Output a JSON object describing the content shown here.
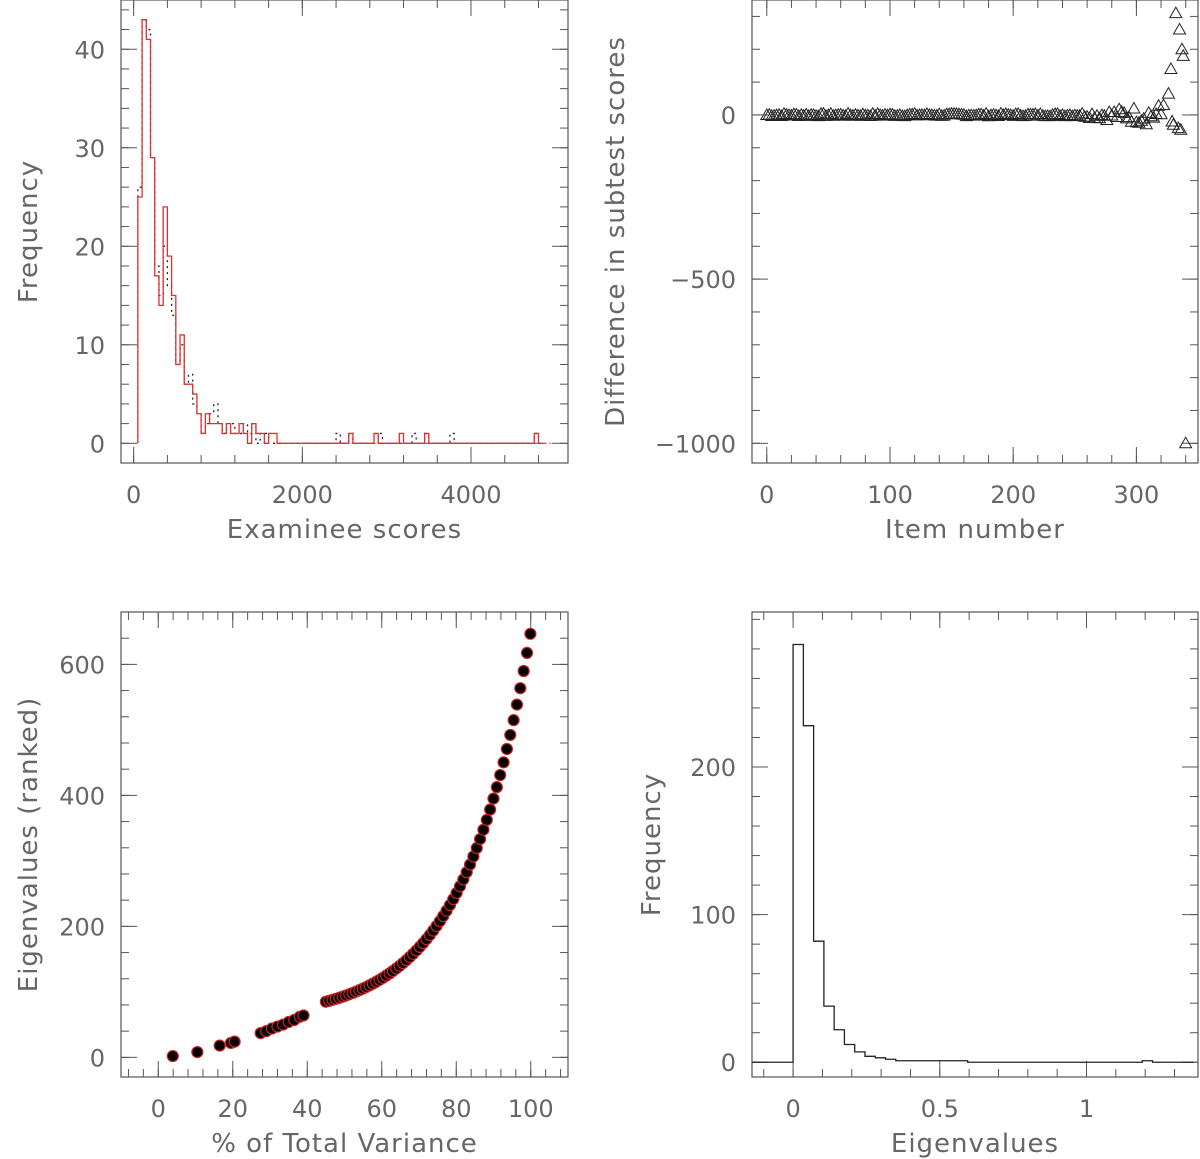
{
  "chart_data": [
    {
      "type": "histogram",
      "xlabel": "Examinee scores",
      "ylabel": "Frequency",
      "xlim": [
        -150,
        5150
      ],
      "ylim": [
        -2,
        45
      ],
      "xticks": [
        0,
        2000,
        4000
      ],
      "yticks": [
        0,
        10,
        20,
        30,
        40
      ],
      "series": [
        {
          "color": "#222222",
          "style": "dotted",
          "bin_width": 50,
          "x_start": 50,
          "values": [
            26,
            43,
            42,
            29,
            18,
            15,
            20,
            16,
            13,
            8,
            10,
            6,
            7,
            4,
            3,
            1,
            2,
            3,
            4,
            2,
            1,
            2,
            2,
            1,
            1,
            2,
            1,
            2,
            0,
            1,
            1,
            0,
            0,
            0,
            0,
            0,
            0,
            0,
            0,
            0,
            0,
            0,
            0,
            0,
            0,
            0,
            0,
            1,
            0,
            0,
            1,
            0,
            0,
            0,
            0,
            0,
            0,
            1,
            0,
            0,
            0,
            0,
            0,
            0,
            0,
            1,
            0,
            0,
            1,
            0,
            0,
            0,
            0,
            0,
            1,
            0,
            0,
            0,
            0,
            0,
            0,
            0,
            0,
            0,
            0,
            0,
            0,
            0,
            0,
            0,
            0,
            0,
            0,
            0,
            1,
            0
          ]
        },
        {
          "color": "#e03030",
          "style": "solid",
          "bin_width": 50,
          "x_start": 50,
          "values": [
            25,
            43,
            41,
            29,
            17,
            14,
            24,
            19,
            15,
            8,
            11,
            6,
            6,
            5,
            3,
            1,
            3,
            2,
            2,
            2,
            1,
            2,
            1,
            1,
            2,
            1,
            0,
            2,
            1,
            1,
            0,
            1,
            1,
            0,
            0,
            0,
            0,
            0,
            0,
            0,
            0,
            0,
            0,
            0,
            0,
            0,
            0,
            0,
            0,
            0,
            1,
            0,
            0,
            0,
            0,
            0,
            1,
            0,
            0,
            0,
            0,
            0,
            1,
            0,
            0,
            0,
            0,
            0,
            1,
            0,
            0,
            0,
            0,
            0,
            0,
            0,
            0,
            0,
            0,
            0,
            0,
            0,
            0,
            0,
            0,
            0,
            0,
            0,
            0,
            0,
            0,
            0,
            0,
            0,
            1,
            0
          ]
        }
      ]
    },
    {
      "type": "scatter",
      "xlabel": "Item number",
      "ylabel": "Difference in subtest scores",
      "xlim": [
        -12,
        350
      ],
      "ylim": [
        -1060,
        350
      ],
      "xticks": [
        0,
        100,
        200,
        300
      ],
      "yticks": [
        -1000,
        -500,
        0
      ],
      "marker": "triangle",
      "color": "#222222",
      "outliers": [
        {
          "x": 332,
          "y": 310
        },
        {
          "x": 335,
          "y": 260
        },
        {
          "x": 337,
          "y": 200
        },
        {
          "x": 338,
          "y": 180
        },
        {
          "x": 328,
          "y": 140
        },
        {
          "x": 326,
          "y": 65
        },
        {
          "x": 322,
          "y": 30
        },
        {
          "x": 330,
          "y": -30
        },
        {
          "x": 334,
          "y": -40
        },
        {
          "x": 336,
          "y": -45
        },
        {
          "x": 329,
          "y": -20
        },
        {
          "x": 340,
          "y": -1000
        }
      ]
    },
    {
      "type": "scatter",
      "xlabel": "% of Total Variance",
      "ylabel": "Eigenvalues (ranked)",
      "xlim": [
        -10,
        110
      ],
      "ylim": [
        -30,
        680
      ],
      "xticks": [
        0,
        20,
        40,
        60,
        80,
        100
      ],
      "yticks": [
        0,
        200,
        400,
        600
      ],
      "marker": "circle",
      "fill": "#000000",
      "edge": "#cc2222",
      "points": [
        [
          3.9,
          2
        ],
        [
          10.5,
          8
        ],
        [
          16.5,
          18
        ],
        [
          19.5,
          22
        ],
        [
          20.5,
          24
        ],
        [
          27.5,
          37
        ],
        [
          29,
          40
        ],
        [
          30.5,
          44
        ],
        [
          32,
          47
        ],
        [
          33.5,
          50
        ],
        [
          35,
          54
        ],
        [
          36.5,
          57
        ],
        [
          38,
          62
        ],
        [
          39,
          64
        ]
      ]
    },
    {
      "type": "histogram",
      "xlabel": "Eigenvalues",
      "ylabel": "Frequency",
      "xlim": [
        -0.14,
        1.38
      ],
      "ylim": [
        -10,
        305
      ],
      "xticks": [
        0,
        0.5,
        1
      ],
      "xtick_labels": [
        "0",
        "0.5",
        "1"
      ],
      "yticks": [
        0,
        100,
        200
      ],
      "color": "#222222",
      "bin_width": 0.035,
      "x_start": -0.14,
      "values": [
        0,
        0,
        0,
        0,
        283,
        228,
        82,
        38,
        22,
        12,
        7,
        4,
        3,
        2,
        1,
        1,
        1,
        1,
        1,
        1,
        1,
        0,
        0,
        0,
        0,
        0,
        0,
        0,
        0,
        0,
        0,
        0,
        0,
        0,
        0,
        0,
        0,
        0,
        1,
        0,
        0,
        0,
        0
      ]
    }
  ]
}
